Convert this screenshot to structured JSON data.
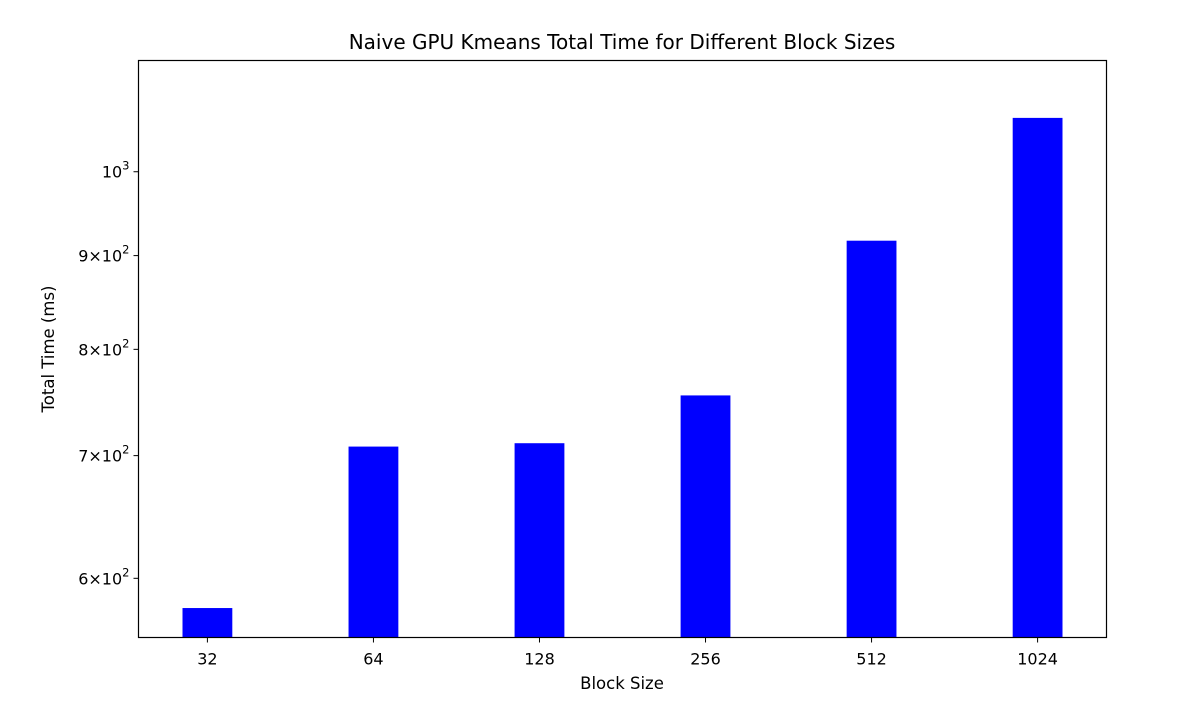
{
  "chart_data": {
    "type": "bar",
    "title": "Naive GPU Kmeans Total Time for Different Block Sizes",
    "xlabel": "Block Size",
    "ylabel": "Total Time (ms)",
    "categories": [
      "32",
      "64",
      "128",
      "256",
      "512",
      "1024"
    ],
    "values": [
      578,
      708,
      711,
      755,
      917,
      1070
    ],
    "yscale": "log",
    "ylim": [
      557,
      1150
    ],
    "yticks": [
      {
        "value": 600,
        "mantissa": "6",
        "base": "10",
        "exponent": "2"
      },
      {
        "value": 700,
        "mantissa": "7",
        "base": "10",
        "exponent": "2"
      },
      {
        "value": 800,
        "mantissa": "8",
        "base": "10",
        "exponent": "2"
      },
      {
        "value": 900,
        "mantissa": "9",
        "base": "10",
        "exponent": "2"
      },
      {
        "value": 1000,
        "mantissa": "",
        "base": "10",
        "exponent": "3"
      }
    ],
    "bar_color": "#0000ff",
    "grid": false,
    "legend": "none"
  }
}
